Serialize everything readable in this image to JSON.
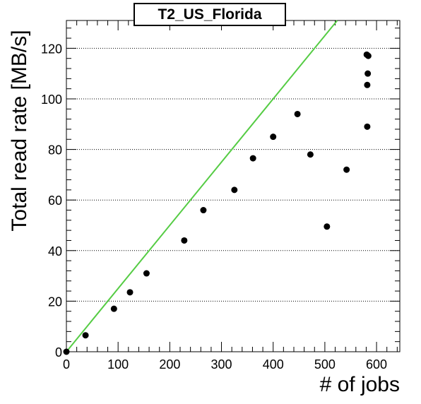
{
  "chart_data": {
    "type": "scatter",
    "title": "T2_US_Florida",
    "xlabel": "# of jobs",
    "ylabel": "Total read rate [MB/s]",
    "xlim": [
      0,
      645
    ],
    "ylim": [
      0,
      131
    ],
    "xticks": [
      0,
      100,
      200,
      300,
      400,
      500,
      600
    ],
    "yticks": [
      0,
      20,
      40,
      60,
      80,
      100,
      120
    ],
    "grid": "horizontal dotted at y ticks",
    "colors": {
      "points": "#000000",
      "line": "#55cc44"
    },
    "series": [
      {
        "type": "scatter",
        "x": [
          0,
          37,
          92,
          123,
          155,
          228,
          265,
          325,
          361,
          400,
          447,
          472,
          504,
          542,
          581,
          584,
          583,
          582,
          582
        ],
        "y": [
          0,
          6.5,
          17,
          23.5,
          31,
          44,
          56,
          64,
          76.5,
          85,
          94,
          78,
          49.5,
          72,
          117.5,
          117,
          110,
          105.5,
          89
        ]
      },
      {
        "type": "line",
        "x": [
          0,
          524
        ],
        "y": [
          0,
          131
        ]
      }
    ]
  }
}
